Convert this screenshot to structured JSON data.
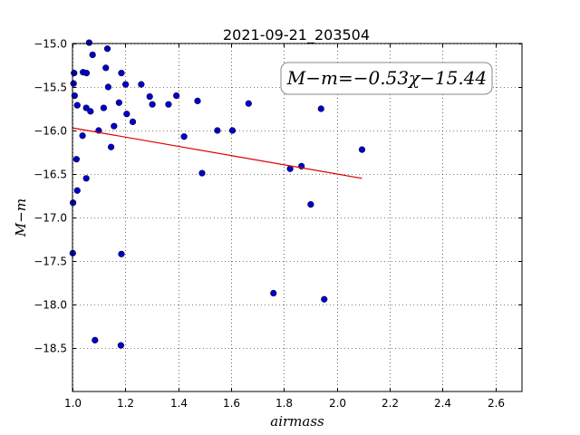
{
  "chart_data": {
    "type": "scatter",
    "title": "2021-09-21_203504",
    "xlabel": "airmass",
    "ylabel": "M−m",
    "xlim": [
      1.0,
      2.7
    ],
    "ylim": [
      -15.0,
      -19.0
    ],
    "y_inverted": true,
    "grid": true,
    "x_ticks": [
      1.0,
      1.2,
      1.4,
      1.6,
      1.8,
      2.0,
      2.2,
      2.4,
      2.6
    ],
    "x_tick_labels": [
      "1.0",
      "1.2",
      "1.4",
      "1.6",
      "1.8",
      "2.0",
      "2.2",
      "2.4",
      "2.6"
    ],
    "y_ticks": [
      -15.0,
      -15.5,
      -16.0,
      -16.5,
      -17.0,
      -17.5,
      -18.0,
      -18.5
    ],
    "y_tick_labels": [
      "−15.0",
      "−15.5",
      "−16.0",
      "−16.5",
      "−17.0",
      "−17.5",
      "−18.0",
      "−18.5"
    ],
    "annotation": "M−m=−0.53χ−15.44",
    "annotation_position": "top-right",
    "marker_color": "#0000cc",
    "fit_color": "#dd0000",
    "fit": {
      "slope": -0.53,
      "intercept": -15.44,
      "x_range": [
        1.0,
        2.095
      ]
    },
    "points": [
      {
        "x": 1.006,
        "y": -15.34
      },
      {
        "x": 1.004,
        "y": -15.46
      },
      {
        "x": 1.008,
        "y": -15.6
      },
      {
        "x": 1.018,
        "y": -15.71
      },
      {
        "x": 1.04,
        "y": -15.33
      },
      {
        "x": 1.053,
        "y": -15.34
      },
      {
        "x": 1.063,
        "y": -14.99
      },
      {
        "x": 1.076,
        "y": -15.13
      },
      {
        "x": 1.052,
        "y": -15.74
      },
      {
        "x": 1.068,
        "y": -15.78
      },
      {
        "x": 1.038,
        "y": -16.06
      },
      {
        "x": 1.015,
        "y": -16.33
      },
      {
        "x": 1.052,
        "y": -16.55
      },
      {
        "x": 1.018,
        "y": -16.69
      },
      {
        "x": 1.002,
        "y": -16.83
      },
      {
        "x": 1.001,
        "y": -17.41
      },
      {
        "x": 1.085,
        "y": -18.41
      },
      {
        "x": 1.099,
        "y": -16.0
      },
      {
        "x": 1.118,
        "y": -15.74
      },
      {
        "x": 1.126,
        "y": -15.28
      },
      {
        "x": 1.132,
        "y": -15.06
      },
      {
        "x": 1.135,
        "y": -15.5
      },
      {
        "x": 1.146,
        "y": -16.19
      },
      {
        "x": 1.157,
        "y": -15.95
      },
      {
        "x": 1.176,
        "y": -15.68
      },
      {
        "x": 1.185,
        "y": -15.34
      },
      {
        "x": 1.201,
        "y": -15.47
      },
      {
        "x": 1.205,
        "y": -15.81
      },
      {
        "x": 1.228,
        "y": -15.9
      },
      {
        "x": 1.185,
        "y": -17.42
      },
      {
        "x": 1.183,
        "y": -18.47
      },
      {
        "x": 1.26,
        "y": -15.47
      },
      {
        "x": 1.292,
        "y": -15.61
      },
      {
        "x": 1.302,
        "y": -15.7
      },
      {
        "x": 1.363,
        "y": -15.7
      },
      {
        "x": 1.393,
        "y": -15.6
      },
      {
        "x": 1.422,
        "y": -16.07
      },
      {
        "x": 1.473,
        "y": -15.66
      },
      {
        "x": 1.49,
        "y": -16.49
      },
      {
        "x": 1.548,
        "y": -16.0
      },
      {
        "x": 1.605,
        "y": -16.0
      },
      {
        "x": 1.666,
        "y": -15.69
      },
      {
        "x": 1.76,
        "y": -17.87
      },
      {
        "x": 1.823,
        "y": -16.44
      },
      {
        "x": 1.866,
        "y": -16.41
      },
      {
        "x": 1.901,
        "y": -16.85
      },
      {
        "x": 1.94,
        "y": -15.75
      },
      {
        "x": 1.952,
        "y": -17.94
      },
      {
        "x": 2.095,
        "y": -16.22
      }
    ]
  }
}
